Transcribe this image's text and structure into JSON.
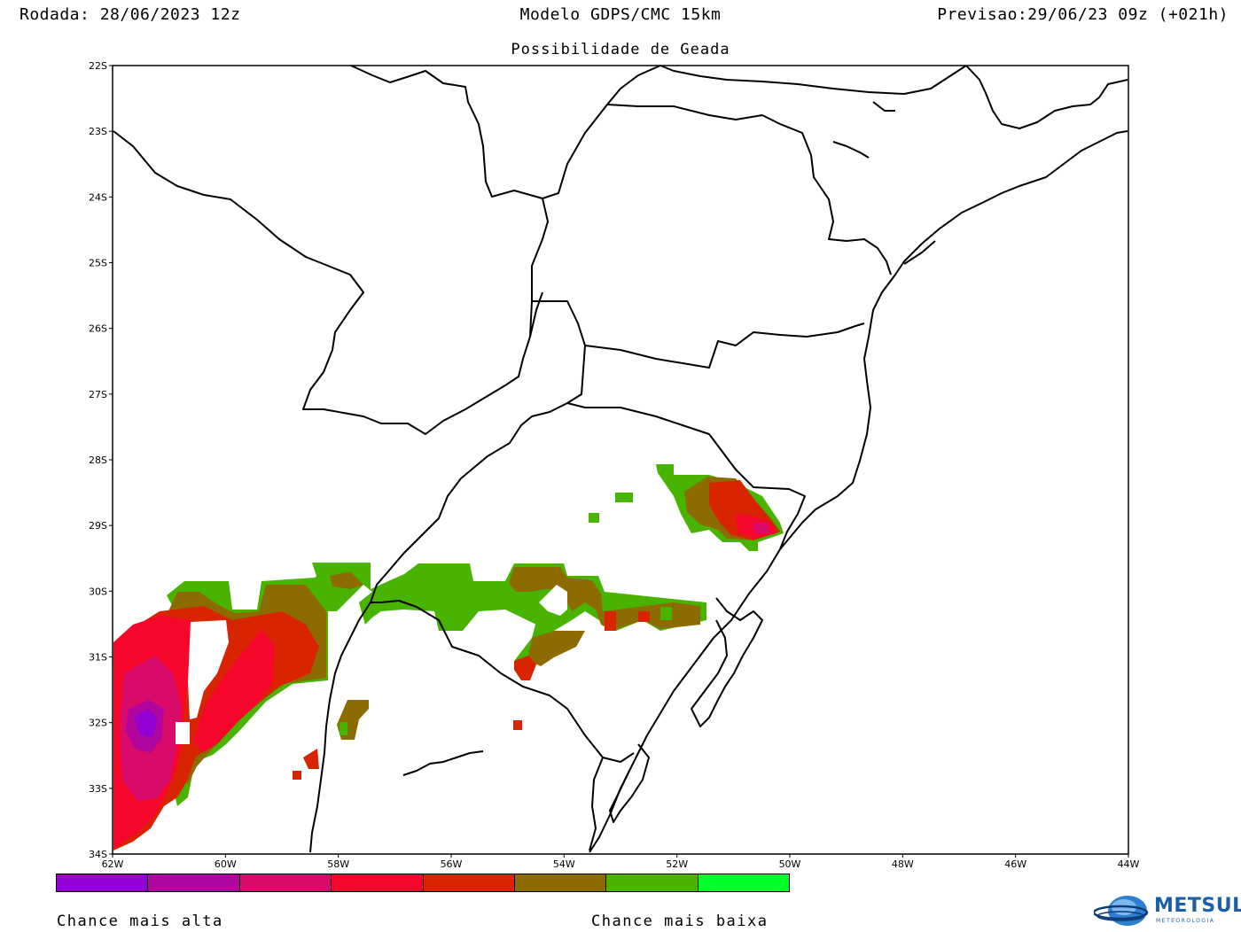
{
  "header": {
    "left": "Rodada: 28/06/2023 12z",
    "center": "Modelo GDPS/CMC 15km",
    "right": "Previsao:29/06/23 09z (+021h)"
  },
  "subtitle": "Possibilidade de Geada",
  "axes": {
    "lat_labels": [
      "22S",
      "23S",
      "24S",
      "25S",
      "26S",
      "27S",
      "28S",
      "29S",
      "30S",
      "31S",
      "32S",
      "33S",
      "34S"
    ],
    "lon_labels": [
      "62W",
      "60W",
      "58W",
      "56W",
      "54W",
      "52W",
      "50W",
      "48W",
      "46W",
      "44W"
    ]
  },
  "legend": {
    "colors": [
      "#9400d3",
      "#b0069f",
      "#d80a6a",
      "#f5062a",
      "#d82400",
      "#8c6b00",
      "#48b400",
      "#00ff2b"
    ],
    "high_label": "Chance mais alta",
    "low_label": "Chance mais baixa"
  },
  "logo": {
    "text": "METSUL",
    "subtext": "METEOROLOGIA"
  }
}
